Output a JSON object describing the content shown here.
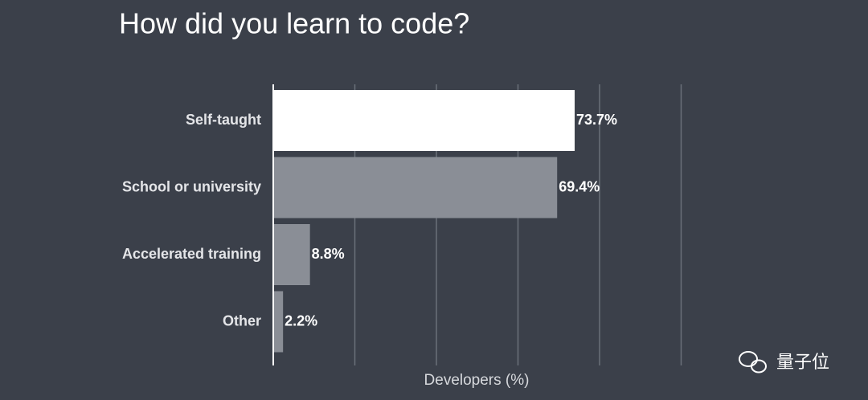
{
  "chart_data": {
    "type": "hbar",
    "title": "How did you learn to code?",
    "categories": [
      "Self-taught",
      "School or university",
      "Accelerated training",
      "Other"
    ],
    "values": [
      73.7,
      69.4,
      8.8,
      2.2
    ],
    "value_labels": [
      "73.7%",
      "69.4%",
      "8.8%",
      "2.2%"
    ],
    "colors": [
      "#ffffff",
      "#8a8e96",
      "#8a8e96",
      "#8a8e96"
    ],
    "x_label": "Developers (%)",
    "xlim": [
      0,
      100
    ],
    "xticks": [
      0,
      20,
      40,
      60,
      80,
      100
    ],
    "grid": true,
    "watermark": "量子位"
  }
}
